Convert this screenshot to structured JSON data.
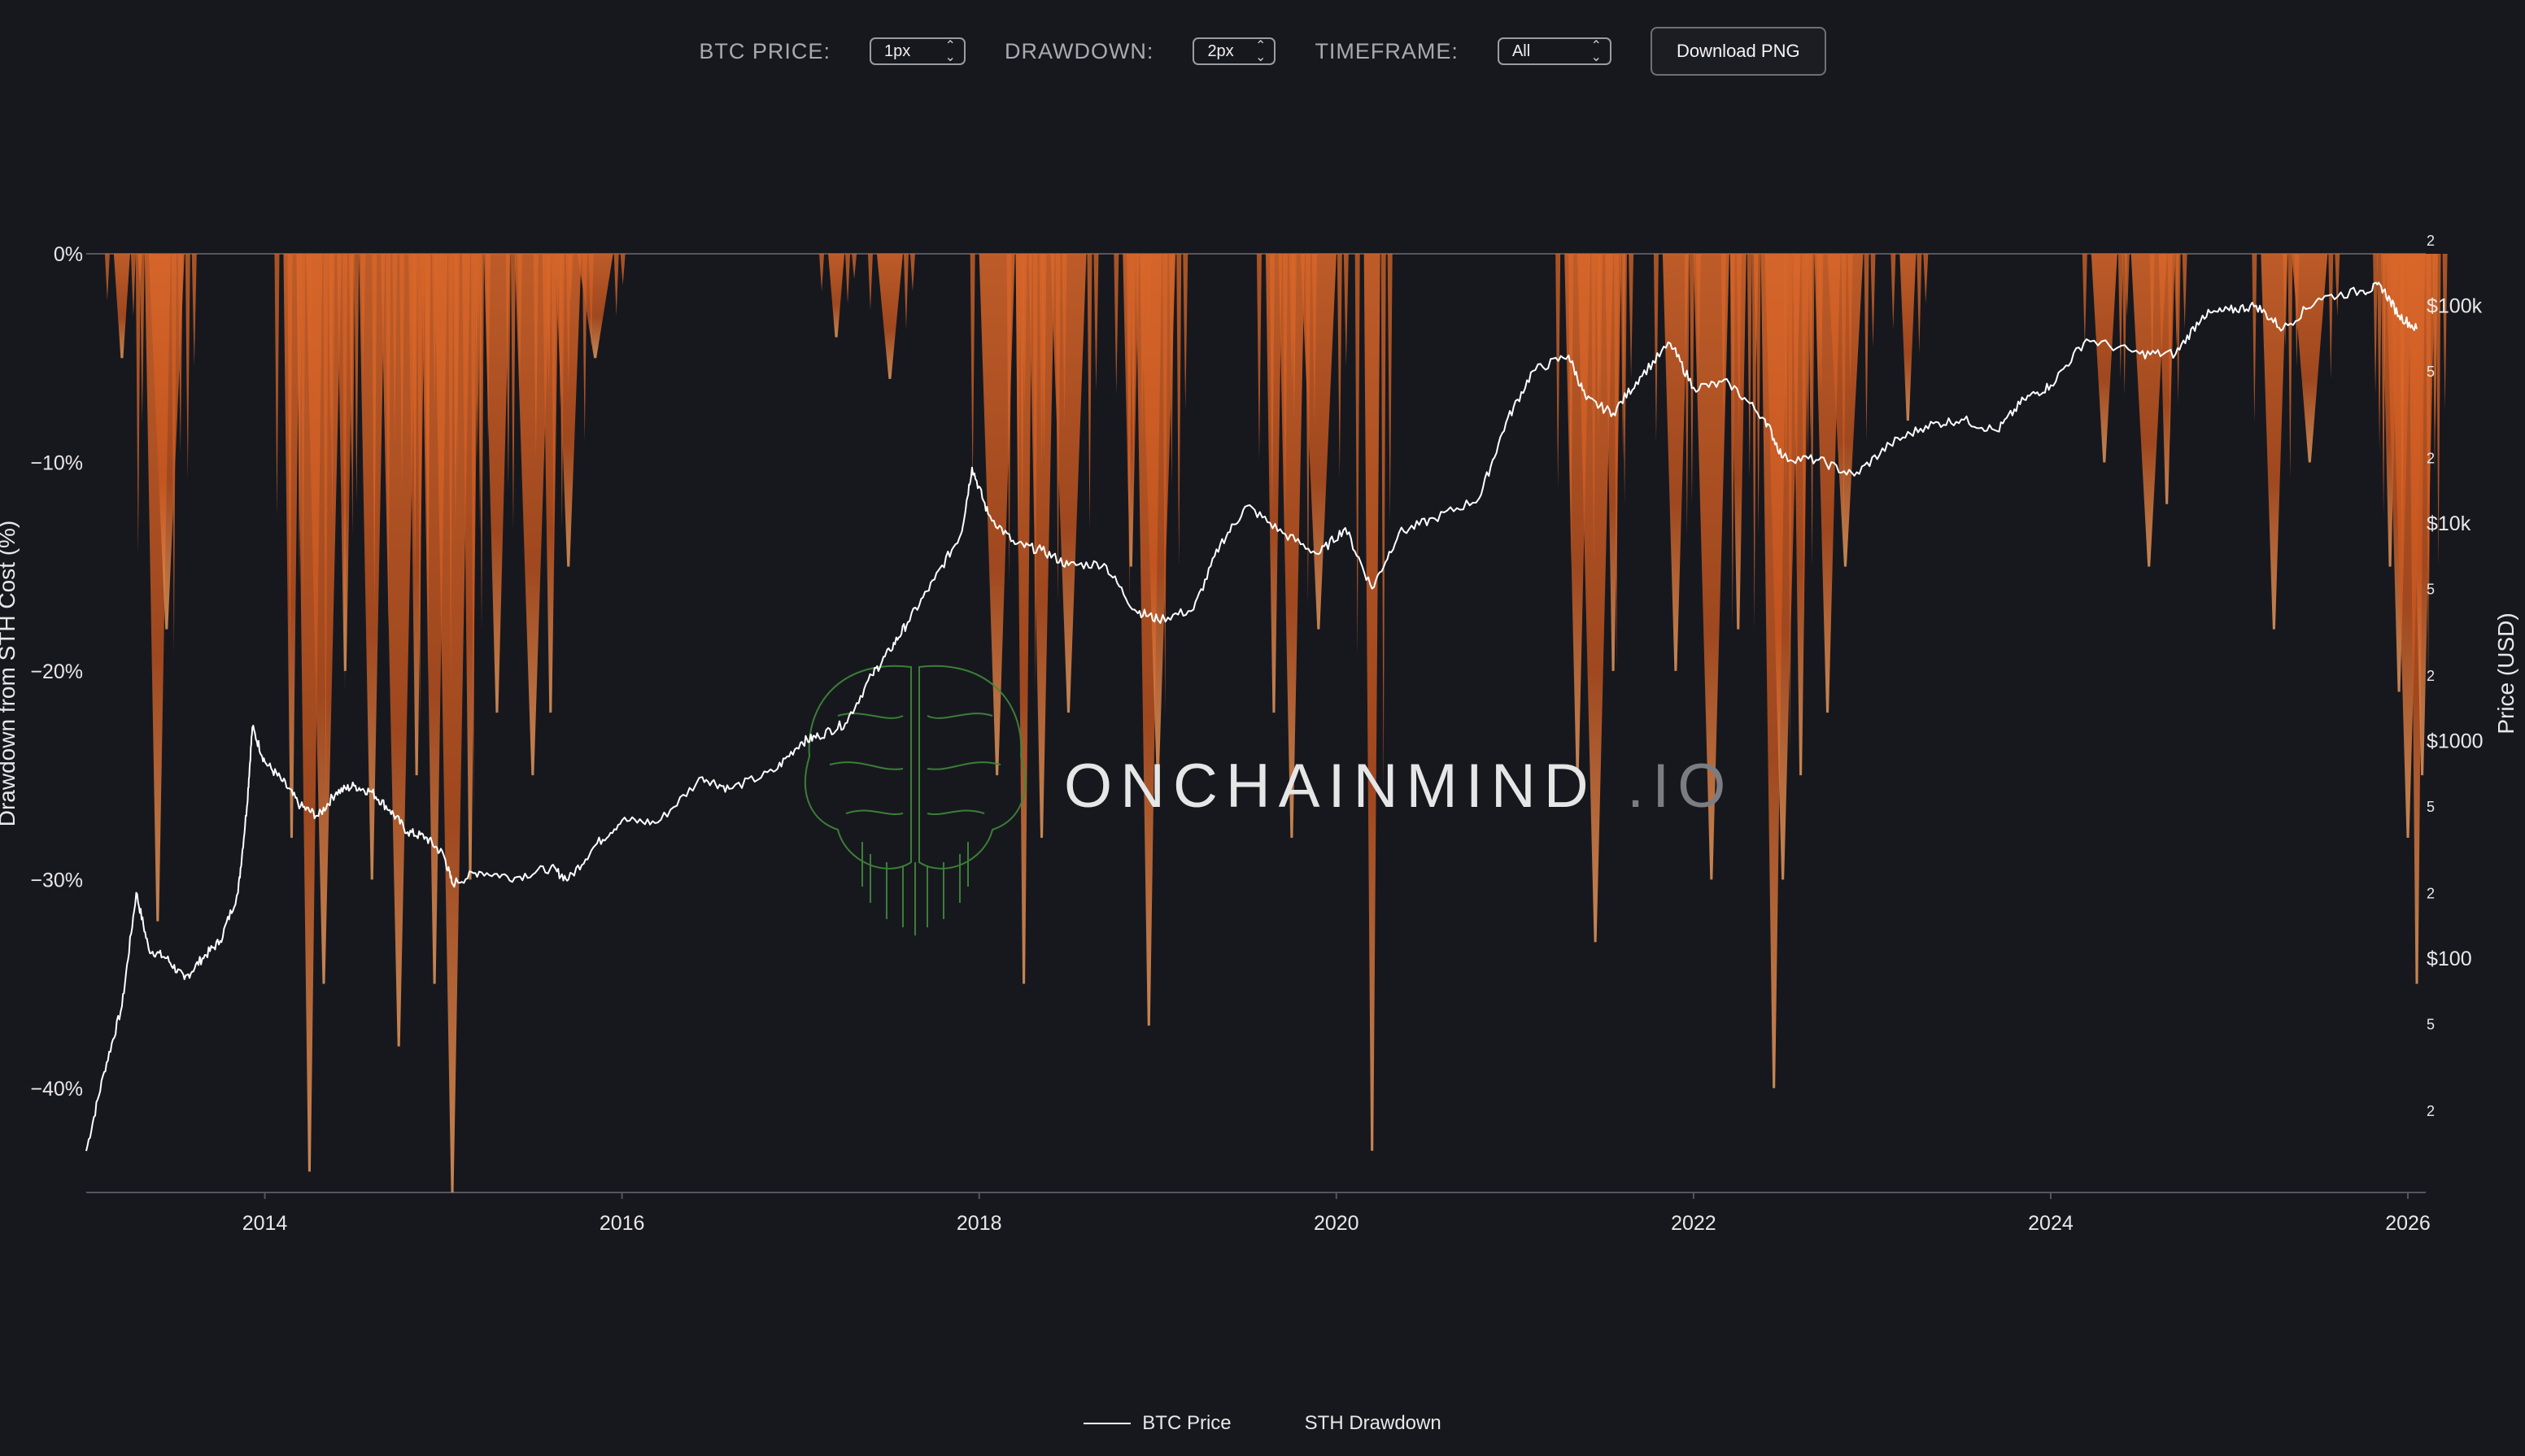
{
  "toolbar": {
    "btc_price_label": "BTC PRICE:",
    "btc_price_value": "1px",
    "drawdown_label": "DRAWDOWN:",
    "drawdown_value": "2px",
    "timeframe_label": "TIMEFRAME:",
    "timeframe_value": "All",
    "download_label": "Download PNG"
  },
  "watermark": {
    "text_main": "ONCHAINMIND",
    "text_suffix": ".IO"
  },
  "colors": {
    "background": "#17181e",
    "price_line": "#ffffff",
    "drawdown": "#d9672a",
    "drawdown_light": "#f0a060",
    "axis_text": "#e8e8e8"
  },
  "chart_data": {
    "type": "line",
    "xlabel": "",
    "y_left_label": "Drawdown from STH Cost (%)",
    "y_right_label": "Price (USD)",
    "x_ticks": [
      "2014",
      "2016",
      "2018",
      "2020",
      "2022",
      "2024",
      "2026"
    ],
    "x_range": [
      2013.0,
      2026.1
    ],
    "y_left_ticks": [
      "0%",
      "−10%",
      "−20%",
      "−30%",
      "−40%"
    ],
    "y_left_range": [
      -45,
      0
    ],
    "y_right_scale": "log",
    "y_right_range": [
      13,
      300000
    ],
    "y_right_major_ticks": [
      "$100",
      "$1000",
      "$10k",
      "$100k"
    ],
    "y_right_minor_ticks": [
      "2",
      "5",
      "2",
      "5",
      "2",
      "5",
      "2",
      "5",
      "2",
      "5",
      "2"
    ],
    "legend": [
      "BTC Price",
      "STH Drawdown"
    ],
    "legend_position": "bottom-center",
    "series": [
      {
        "name": "BTC Price",
        "axis": "right",
        "points": [
          [
            2013.0,
            13
          ],
          [
            2013.1,
            30
          ],
          [
            2013.2,
            60
          ],
          [
            2013.28,
            200
          ],
          [
            2013.35,
            110
          ],
          [
            2013.45,
            100
          ],
          [
            2013.55,
            80
          ],
          [
            2013.65,
            100
          ],
          [
            2013.75,
            120
          ],
          [
            2013.85,
            200
          ],
          [
            2013.9,
            500
          ],
          [
            2013.93,
            1150
          ],
          [
            2014.0,
            800
          ],
          [
            2014.1,
            650
          ],
          [
            2014.2,
            500
          ],
          [
            2014.3,
            450
          ],
          [
            2014.4,
            580
          ],
          [
            2014.5,
            620
          ],
          [
            2014.6,
            580
          ],
          [
            2014.7,
            480
          ],
          [
            2014.8,
            380
          ],
          [
            2014.9,
            360
          ],
          [
            2015.0,
            300
          ],
          [
            2015.05,
            220
          ],
          [
            2015.2,
            250
          ],
          [
            2015.4,
            235
          ],
          [
            2015.6,
            260
          ],
          [
            2015.7,
            230
          ],
          [
            2015.85,
            330
          ],
          [
            2016.0,
            430
          ],
          [
            2016.2,
            420
          ],
          [
            2016.45,
            680
          ],
          [
            2016.6,
            600
          ],
          [
            2016.85,
            720
          ],
          [
            2017.0,
            980
          ],
          [
            2017.1,
            1050
          ],
          [
            2017.25,
            1200
          ],
          [
            2017.4,
            2000
          ],
          [
            2017.5,
            2600
          ],
          [
            2017.6,
            3500
          ],
          [
            2017.75,
            5500
          ],
          [
            2017.9,
            9000
          ],
          [
            2017.96,
            18000
          ],
          [
            2018.05,
            11000
          ],
          [
            2018.2,
            8000
          ],
          [
            2018.35,
            7500
          ],
          [
            2018.5,
            6400
          ],
          [
            2018.7,
            6500
          ],
          [
            2018.87,
            4000
          ],
          [
            2019.0,
            3600
          ],
          [
            2019.2,
            4000
          ],
          [
            2019.35,
            8000
          ],
          [
            2019.5,
            12000
          ],
          [
            2019.7,
            9000
          ],
          [
            2019.9,
            7200
          ],
          [
            2020.05,
            9500
          ],
          [
            2020.2,
            5000
          ],
          [
            2020.35,
            9000
          ],
          [
            2020.55,
            10500
          ],
          [
            2020.8,
            13000
          ],
          [
            2020.95,
            29000
          ],
          [
            2021.1,
            50000
          ],
          [
            2021.3,
            59000
          ],
          [
            2021.4,
            37000
          ],
          [
            2021.55,
            32000
          ],
          [
            2021.7,
            47000
          ],
          [
            2021.87,
            67000
          ],
          [
            2022.0,
            42000
          ],
          [
            2022.2,
            44000
          ],
          [
            2022.4,
            30000
          ],
          [
            2022.5,
            20000
          ],
          [
            2022.7,
            19500
          ],
          [
            2022.9,
            16500
          ],
          [
            2023.1,
            23000
          ],
          [
            2023.3,
            28000
          ],
          [
            2023.5,
            30000
          ],
          [
            2023.7,
            26500
          ],
          [
            2023.85,
            37000
          ],
          [
            2024.0,
            43000
          ],
          [
            2024.2,
            70000
          ],
          [
            2024.5,
            60000
          ],
          [
            2024.7,
            60000
          ],
          [
            2024.85,
            90000
          ],
          [
            2025.0,
            95000
          ],
          [
            2025.15,
            100000
          ],
          [
            2025.3,
            78000
          ],
          [
            2025.5,
            108000
          ],
          [
            2025.75,
            117000
          ],
          [
            2025.85,
            123000
          ],
          [
            2025.95,
            90000
          ],
          [
            2026.05,
            78000
          ]
        ]
      },
      {
        "name": "STH Drawdown",
        "axis": "left",
        "spikes": [
          [
            2013.2,
            -5
          ],
          [
            2013.4,
            -32
          ],
          [
            2013.45,
            -18
          ],
          [
            2014.15,
            -28
          ],
          [
            2014.25,
            -44
          ],
          [
            2014.33,
            -35
          ],
          [
            2014.45,
            -20
          ],
          [
            2014.6,
            -30
          ],
          [
            2014.75,
            -38
          ],
          [
            2014.85,
            -25
          ],
          [
            2014.95,
            -35
          ],
          [
            2015.05,
            -45
          ],
          [
            2015.15,
            -30
          ],
          [
            2015.3,
            -22
          ],
          [
            2015.5,
            -25
          ],
          [
            2015.6,
            -22
          ],
          [
            2015.7,
            -15
          ],
          [
            2015.85,
            -5
          ],
          [
            2017.2,
            -4
          ],
          [
            2017.5,
            -6
          ],
          [
            2018.1,
            -25
          ],
          [
            2018.25,
            -35
          ],
          [
            2018.35,
            -28
          ],
          [
            2018.5,
            -22
          ],
          [
            2018.85,
            -15
          ],
          [
            2018.95,
            -37
          ],
          [
            2019.0,
            -25
          ],
          [
            2019.65,
            -22
          ],
          [
            2019.75,
            -28
          ],
          [
            2019.9,
            -18
          ],
          [
            2020.2,
            -43
          ],
          [
            2021.35,
            -25
          ],
          [
            2021.45,
            -33
          ],
          [
            2021.55,
            -20
          ],
          [
            2021.9,
            -20
          ],
          [
            2022.1,
            -30
          ],
          [
            2022.25,
            -18
          ],
          [
            2022.45,
            -40
          ],
          [
            2022.5,
            -30
          ],
          [
            2022.6,
            -25
          ],
          [
            2022.75,
            -22
          ],
          [
            2022.85,
            -15
          ],
          [
            2023.2,
            -8
          ],
          [
            2024.3,
            -10
          ],
          [
            2024.55,
            -15
          ],
          [
            2024.65,
            -12
          ],
          [
            2025.25,
            -18
          ],
          [
            2025.45,
            -10
          ],
          [
            2025.9,
            -15
          ],
          [
            2025.95,
            -21
          ],
          [
            2026.0,
            -28
          ],
          [
            2026.05,
            -35
          ],
          [
            2026.08,
            -25
          ]
        ]
      }
    ]
  }
}
